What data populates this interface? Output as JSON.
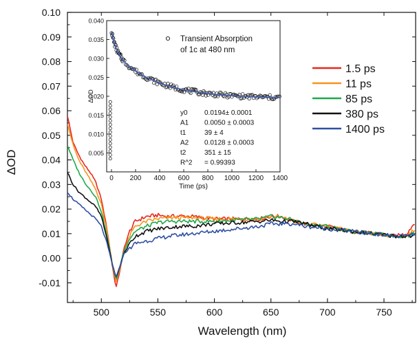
{
  "chart_data": {
    "type": "line",
    "xlabel": "Wavelength (nm)",
    "ylabel": "ΔOD",
    "xlim": [
      470,
      778
    ],
    "ylim": [
      -0.018,
      0.1
    ],
    "xticks": [
      500,
      550,
      600,
      650,
      700,
      750
    ],
    "yticks": [
      -0.01,
      0.0,
      0.01,
      0.02,
      0.03,
      0.04,
      0.05,
      0.06,
      0.07,
      0.08,
      0.09,
      0.1
    ],
    "ytick_labels": [
      "-0.01",
      "0.00",
      "0.01",
      "0.02",
      "0.03",
      "0.04",
      "0.05",
      "0.06",
      "0.07",
      "0.08",
      "0.09",
      "0.10"
    ],
    "legend_position": "right",
    "series": [
      {
        "name": "1.5 ps",
        "color": "#e8281e",
        "x": [
          470,
          475,
          480,
          485,
          490,
          495,
          500,
          505,
          510,
          513,
          516,
          520,
          525,
          530,
          540,
          550,
          560,
          570,
          580,
          600,
          620,
          640,
          650,
          660,
          670,
          680,
          700,
          720,
          740,
          760,
          770,
          778
        ],
        "y": [
          0.058,
          0.047,
          0.042,
          0.038,
          0.035,
          0.031,
          0.024,
          0.012,
          -0.004,
          -0.012,
          -0.006,
          0.004,
          0.011,
          0.015,
          0.017,
          0.0175,
          0.017,
          0.0172,
          0.017,
          0.016,
          0.016,
          0.016,
          0.017,
          0.017,
          0.015,
          0.014,
          0.013,
          0.011,
          0.01,
          0.009,
          0.01,
          0.015
        ]
      },
      {
        "name": "11 ps",
        "color": "#f7941d",
        "x": [
          470,
          475,
          480,
          485,
          490,
          495,
          500,
          505,
          510,
          513,
          516,
          520,
          525,
          530,
          540,
          550,
          560,
          570,
          580,
          600,
          620,
          640,
          650,
          660,
          670,
          680,
          700,
          720,
          740,
          760,
          770,
          778
        ],
        "y": [
          0.055,
          0.046,
          0.04,
          0.036,
          0.032,
          0.028,
          0.022,
          0.011,
          -0.003,
          -0.01,
          -0.005,
          0.003,
          0.009,
          0.013,
          0.015,
          0.016,
          0.0165,
          0.0165,
          0.0165,
          0.016,
          0.016,
          0.016,
          0.017,
          0.0165,
          0.015,
          0.014,
          0.013,
          0.011,
          0.01,
          0.009,
          0.009,
          0.012
        ]
      },
      {
        "name": "85 ps",
        "color": "#1fa84a",
        "x": [
          470,
          475,
          480,
          485,
          490,
          495,
          500,
          505,
          510,
          513,
          516,
          520,
          525,
          530,
          540,
          550,
          560,
          570,
          580,
          600,
          620,
          640,
          650,
          660,
          670,
          680,
          700,
          720,
          740,
          760,
          770,
          778
        ],
        "y": [
          0.046,
          0.04,
          0.035,
          0.031,
          0.028,
          0.025,
          0.019,
          0.009,
          -0.003,
          -0.009,
          -0.004,
          0.003,
          0.008,
          0.011,
          0.013,
          0.0145,
          0.015,
          0.015,
          0.015,
          0.015,
          0.0155,
          0.016,
          0.017,
          0.0165,
          0.0155,
          0.014,
          0.013,
          0.011,
          0.01,
          0.009,
          0.009,
          0.01
        ]
      },
      {
        "name": "380 ps",
        "color": "#111111",
        "x": [
          470,
          475,
          480,
          485,
          490,
          495,
          500,
          505,
          510,
          513,
          516,
          520,
          525,
          530,
          540,
          550,
          560,
          570,
          580,
          600,
          620,
          640,
          650,
          660,
          670,
          680,
          700,
          720,
          740,
          760,
          770,
          778
        ],
        "y": [
          0.035,
          0.03,
          0.027,
          0.025,
          0.023,
          0.021,
          0.017,
          0.008,
          -0.003,
          -0.008,
          -0.004,
          0.002,
          0.006,
          0.009,
          0.011,
          0.012,
          0.0125,
          0.013,
          0.013,
          0.014,
          0.0145,
          0.015,
          0.0155,
          0.015,
          0.015,
          0.014,
          0.012,
          0.011,
          0.01,
          0.009,
          0.009,
          0.009
        ]
      },
      {
        "name": "1400 ps",
        "color": "#2e4fa3",
        "x": [
          470,
          475,
          480,
          485,
          490,
          495,
          500,
          505,
          510,
          513,
          516,
          520,
          525,
          530,
          540,
          550,
          560,
          570,
          580,
          600,
          620,
          640,
          650,
          660,
          670,
          680,
          700,
          720,
          740,
          760,
          770,
          778
        ],
        "y": [
          0.027,
          0.024,
          0.022,
          0.02,
          0.018,
          0.016,
          0.013,
          0.006,
          -0.003,
          -0.008,
          -0.004,
          0.002,
          0.004,
          0.006,
          0.007,
          0.008,
          0.009,
          0.0095,
          0.01,
          0.011,
          0.012,
          0.013,
          0.014,
          0.014,
          0.014,
          0.013,
          0.012,
          0.011,
          0.01,
          0.009,
          0.009,
          0.01
        ]
      }
    ],
    "inset": {
      "type": "scatter",
      "xlabel": "Time (ps)",
      "ylabel": "ΔOD",
      "xlim": [
        -40,
        1400
      ],
      "ylim": [
        0,
        0.04
      ],
      "xticks": [
        0,
        200,
        400,
        600,
        800,
        1000,
        1200,
        1400
      ],
      "yticks": [
        0.005,
        0.01,
        0.015,
        0.02,
        0.025,
        0.03,
        0.035,
        0.04
      ],
      "ytick_labels": [
        "0.005",
        "0.010",
        "0.015",
        "0.020",
        "0.025",
        "0.030",
        "0.035",
        "0.040"
      ],
      "legend_label": "Transient Absorption",
      "legend_label_line2": "of 1c at 480 nm",
      "fit_color": "#4a63b0",
      "fit_params": [
        {
          "name": "y0",
          "value": "0.0194± 0.0001"
        },
        {
          "name": "A1",
          "value": "0.0050 ± 0.0003"
        },
        {
          "name": "t1",
          "value": "39 ± 4"
        },
        {
          "name": "A2",
          "value": "0.0128 ± 0.0003"
        },
        {
          "name": "t2",
          "value": "351 ± 15"
        },
        {
          "name": "R^2",
          "value": "= 0.99393"
        }
      ],
      "fit_model": {
        "y0": 0.0194,
        "A1": 0.005,
        "t1": 39,
        "A2": 0.0128,
        "t2": 351
      },
      "early_time_points": {
        "x": [
          -10,
          -10,
          -10,
          -10,
          -10,
          -10,
          -10,
          -10,
          -10,
          -10,
          -10,
          -10,
          -10,
          -10,
          -10,
          -10
        ],
        "y": [
          0.0035,
          0.0045,
          0.0055,
          0.0065,
          0.0075,
          0.0085,
          0.0095,
          0.0105,
          0.0115,
          0.0125,
          0.0135,
          0.0145,
          0.0155,
          0.0165,
          0.0175,
          0.0185
        ]
      }
    }
  }
}
